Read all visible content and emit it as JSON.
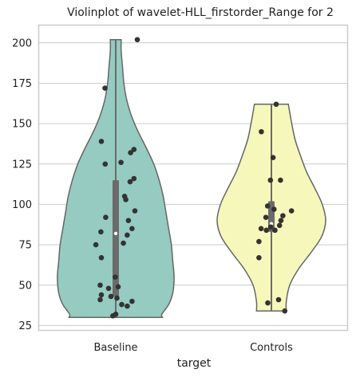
{
  "chart_data": {
    "type": "violin",
    "title": "Violinplot of wavelet-HLL_firstorder_Range for 2",
    "xlabel": "target",
    "ylabel": "",
    "categories": [
      "Baseline",
      "Controls"
    ],
    "ylim": [
      22,
      211
    ],
    "yticks": [
      25,
      50,
      75,
      100,
      125,
      150,
      175,
      200
    ],
    "grid": "horizontal",
    "colors": {
      "Baseline": "#95cbc0",
      "Controls": "#f6f7bb",
      "edge": "#666666",
      "box": "#6b6b6b",
      "point": "#333333",
      "median": "#ffffff"
    },
    "violins": [
      {
        "category": "Baseline",
        "min": 30,
        "max": 202,
        "box": {
          "q1": 43,
          "median": 82,
          "q3": 115
        },
        "profile": [
          {
            "y": 30,
            "w": 0.69
          },
          {
            "y": 32,
            "w": 0.68
          },
          {
            "y": 38,
            "w": 0.78
          },
          {
            "y": 45,
            "w": 0.84
          },
          {
            "y": 55,
            "w": 0.86
          },
          {
            "y": 65,
            "w": 0.84
          },
          {
            "y": 75,
            "w": 0.82
          },
          {
            "y": 85,
            "w": 0.78
          },
          {
            "y": 95,
            "w": 0.74
          },
          {
            "y": 105,
            "w": 0.7
          },
          {
            "y": 115,
            "w": 0.64
          },
          {
            "y": 125,
            "w": 0.56
          },
          {
            "y": 135,
            "w": 0.45
          },
          {
            "y": 145,
            "w": 0.33
          },
          {
            "y": 155,
            "w": 0.23
          },
          {
            "y": 165,
            "w": 0.16
          },
          {
            "y": 175,
            "w": 0.12
          },
          {
            "y": 185,
            "w": 0.1
          },
          {
            "y": 195,
            "w": 0.08
          },
          {
            "y": 202,
            "w": 0.08
          }
        ],
        "points": [
          {
            "jit": 0.9,
            "y": 202
          },
          {
            "jit": -0.45,
            "y": 172
          },
          {
            "jit": -0.6,
            "y": 139
          },
          {
            "jit": 0.76,
            "y": 134
          },
          {
            "jit": 0.62,
            "y": 132
          },
          {
            "jit": 0.22,
            "y": 126
          },
          {
            "jit": -0.44,
            "y": 125
          },
          {
            "jit": 0.76,
            "y": 116
          },
          {
            "jit": 0.6,
            "y": 114
          },
          {
            "jit": 0.37,
            "y": 105
          },
          {
            "jit": 0.42,
            "y": 103
          },
          {
            "jit": 0.8,
            "y": 96
          },
          {
            "jit": -0.42,
            "y": 92
          },
          {
            "jit": 0.53,
            "y": 90
          },
          {
            "jit": 0.68,
            "y": 85
          },
          {
            "jit": -0.62,
            "y": 83
          },
          {
            "jit": 0.48,
            "y": 81
          },
          {
            "jit": 0.32,
            "y": 76
          },
          {
            "jit": -0.83,
            "y": 75
          },
          {
            "jit": -0.6,
            "y": 67
          },
          {
            "jit": -0.02,
            "y": 55
          },
          {
            "jit": -0.65,
            "y": 50
          },
          {
            "jit": 0.1,
            "y": 49
          },
          {
            "jit": -0.3,
            "y": 48
          },
          {
            "jit": -0.6,
            "y": 44
          },
          {
            "jit": -0.2,
            "y": 43
          },
          {
            "jit": 0.05,
            "y": 42
          },
          {
            "jit": -0.65,
            "y": 41
          },
          {
            "jit": 0.68,
            "y": 40
          },
          {
            "jit": 0.25,
            "y": 38
          },
          {
            "jit": 0.48,
            "y": 37
          },
          {
            "jit": 0.0,
            "y": 32
          },
          {
            "jit": -0.12,
            "y": 31
          }
        ]
      },
      {
        "category": "Controls",
        "min": 34,
        "max": 162,
        "box": {
          "q1": 83,
          "median": 88,
          "q3": 102
        },
        "profile": [
          {
            "y": 34,
            "w": 0.22
          },
          {
            "y": 40,
            "w": 0.22
          },
          {
            "y": 50,
            "w": 0.27
          },
          {
            "y": 60,
            "w": 0.4
          },
          {
            "y": 70,
            "w": 0.58
          },
          {
            "y": 80,
            "w": 0.74
          },
          {
            "y": 90,
            "w": 0.8
          },
          {
            "y": 100,
            "w": 0.75
          },
          {
            "y": 110,
            "w": 0.64
          },
          {
            "y": 120,
            "w": 0.52
          },
          {
            "y": 130,
            "w": 0.43
          },
          {
            "y": 140,
            "w": 0.35
          },
          {
            "y": 150,
            "w": 0.3
          },
          {
            "y": 162,
            "w": 0.25
          }
        ],
        "points": [
          {
            "jit": 0.2,
            "y": 162
          },
          {
            "jit": -0.42,
            "y": 145
          },
          {
            "jit": 0.07,
            "y": 129
          },
          {
            "jit": -0.04,
            "y": 115
          },
          {
            "jit": 0.38,
            "y": 115
          },
          {
            "jit": -0.16,
            "y": 99
          },
          {
            "jit": 0.11,
            "y": 97
          },
          {
            "jit": 0.84,
            "y": 96
          },
          {
            "jit": 0.48,
            "y": 93
          },
          {
            "jit": -0.23,
            "y": 92
          },
          {
            "jit": 0.4,
            "y": 90
          },
          {
            "jit": 0.34,
            "y": 87
          },
          {
            "jit": -0.03,
            "y": 86
          },
          {
            "jit": -0.43,
            "y": 85
          },
          {
            "jit": -0.21,
            "y": 84
          },
          {
            "jit": 0.15,
            "y": 84
          },
          {
            "jit": -0.52,
            "y": 77
          },
          {
            "jit": -0.52,
            "y": 67
          },
          {
            "jit": 0.3,
            "y": 41
          },
          {
            "jit": -0.15,
            "y": 39
          },
          {
            "jit": 0.56,
            "y": 34
          }
        ]
      }
    ]
  }
}
